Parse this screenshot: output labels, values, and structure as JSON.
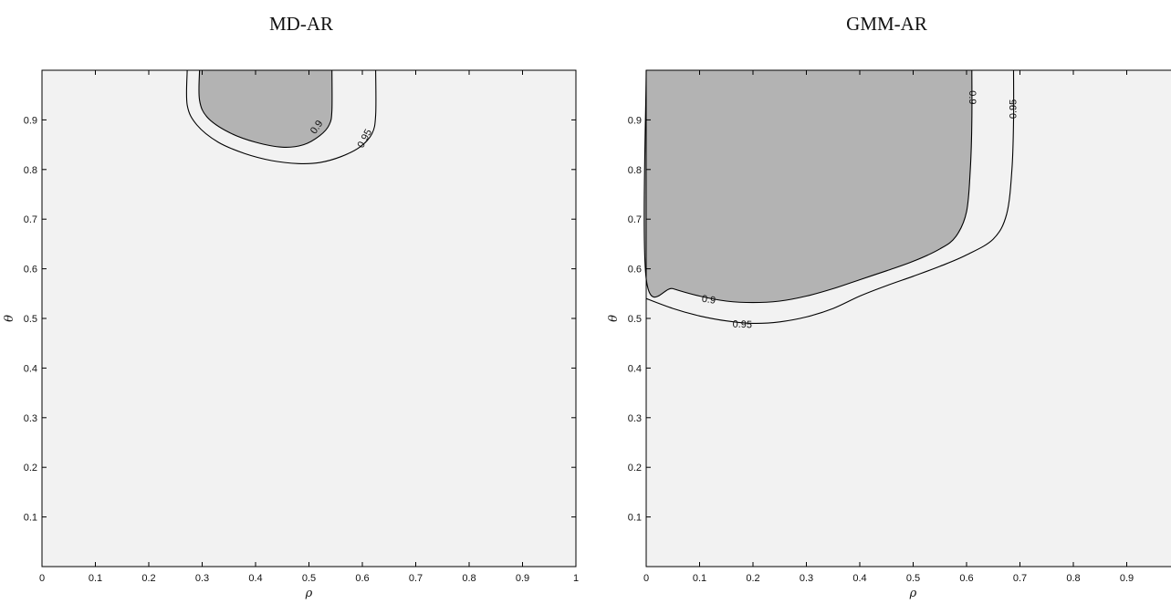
{
  "chart_data": [
    {
      "type": "contour",
      "title": "MD-AR",
      "xlabel": "ρ",
      "ylabel": "θ",
      "xlim": [
        0,
        1
      ],
      "ylim": [
        0,
        1
      ],
      "x_ticks": [
        "0",
        "0.1",
        "0.2",
        "0.3",
        "0.4",
        "0.5",
        "0.6",
        "0.7",
        "0.8",
        "0.9",
        "1"
      ],
      "y_ticks": [
        "0.1",
        "0.2",
        "0.3",
        "0.4",
        "0.5",
        "0.6",
        "0.7",
        "0.8",
        "0.9"
      ],
      "background_color": "#f2f2f2",
      "fill_color": "#b3b3b3",
      "filled_level": "0.9",
      "contours": [
        {
          "level": "0.9",
          "filled": true,
          "points": [
            [
              0.295,
              1.0
            ],
            [
              0.295,
              0.94
            ],
            [
              0.31,
              0.905
            ],
            [
              0.35,
              0.875
            ],
            [
              0.4,
              0.855
            ],
            [
              0.45,
              0.845
            ],
            [
              0.49,
              0.85
            ],
            [
              0.52,
              0.868
            ],
            [
              0.538,
              0.89
            ],
            [
              0.543,
              0.92
            ],
            [
              0.543,
              1.0
            ]
          ]
        },
        {
          "level": "0.95",
          "filled": false,
          "points": [
            [
              0.272,
              1.0
            ],
            [
              0.272,
              0.93
            ],
            [
              0.29,
              0.89
            ],
            [
              0.33,
              0.855
            ],
            [
              0.38,
              0.832
            ],
            [
              0.43,
              0.818
            ],
            [
              0.48,
              0.812
            ],
            [
              0.52,
              0.814
            ],
            [
              0.56,
              0.826
            ],
            [
              0.595,
              0.845
            ],
            [
              0.618,
              0.872
            ],
            [
              0.625,
              0.91
            ],
            [
              0.625,
              1.0
            ]
          ]
        }
      ],
      "contour_labels": [
        {
          "text": "0.9",
          "x": 0.515,
          "y": 0.885,
          "angle": -55
        },
        {
          "text": "0.95",
          "x": 0.605,
          "y": 0.862,
          "angle": -62
        }
      ]
    },
    {
      "type": "contour",
      "title": "GMM-AR",
      "xlabel": "ρ",
      "ylabel": "θ",
      "xlim": [
        0,
        1
      ],
      "ylim": [
        0,
        1
      ],
      "x_ticks": [
        "0",
        "0.1",
        "0.2",
        "0.3",
        "0.4",
        "0.5",
        "0.6",
        "0.7",
        "0.8",
        "0.9"
      ],
      "y_ticks": [
        "0.1",
        "0.2",
        "0.3",
        "0.4",
        "0.5",
        "0.6",
        "0.7",
        "0.8",
        "0.9"
      ],
      "background_color": "#f2f2f2",
      "fill_color": "#b3b3b3",
      "filled_level": "0.9",
      "contours": [
        {
          "level": "0.9",
          "filled": true,
          "points": [
            [
              0.0,
              1.0
            ],
            [
              0.0,
              0.58
            ],
            [
              0.05,
              0.56
            ],
            [
              0.1,
              0.545
            ],
            [
              0.15,
              0.535
            ],
            [
              0.2,
              0.532
            ],
            [
              0.25,
              0.535
            ],
            [
              0.3,
              0.545
            ],
            [
              0.35,
              0.56
            ],
            [
              0.4,
              0.578
            ],
            [
              0.45,
              0.596
            ],
            [
              0.5,
              0.615
            ],
            [
              0.55,
              0.64
            ],
            [
              0.58,
              0.665
            ],
            [
              0.6,
              0.715
            ],
            [
              0.607,
              0.8
            ],
            [
              0.61,
              0.9
            ],
            [
              0.61,
              1.0
            ]
          ]
        },
        {
          "level": "0.95",
          "filled": false,
          "points": [
            [
              0.0,
              0.54
            ],
            [
              0.05,
              0.52
            ],
            [
              0.1,
              0.505
            ],
            [
              0.15,
              0.495
            ],
            [
              0.2,
              0.49
            ],
            [
              0.25,
              0.493
            ],
            [
              0.3,
              0.503
            ],
            [
              0.35,
              0.52
            ],
            [
              0.4,
              0.545
            ],
            [
              0.45,
              0.566
            ],
            [
              0.5,
              0.585
            ],
            [
              0.55,
              0.605
            ],
            [
              0.6,
              0.628
            ],
            [
              0.65,
              0.66
            ],
            [
              0.675,
              0.71
            ],
            [
              0.685,
              0.8
            ],
            [
              0.688,
              0.9
            ],
            [
              0.688,
              1.0
            ]
          ]
        }
      ],
      "contour_labels": [
        {
          "text": "0.9",
          "x": 0.117,
          "y": 0.537,
          "angle": 8
        },
        {
          "text": "0.95",
          "x": 0.18,
          "y": 0.487,
          "angle": 2
        },
        {
          "text": "0.9",
          "x": 0.61,
          "y": 0.945,
          "angle": 90
        },
        {
          "text": "0.95",
          "x": 0.688,
          "y": 0.922,
          "angle": -90
        }
      ]
    }
  ]
}
